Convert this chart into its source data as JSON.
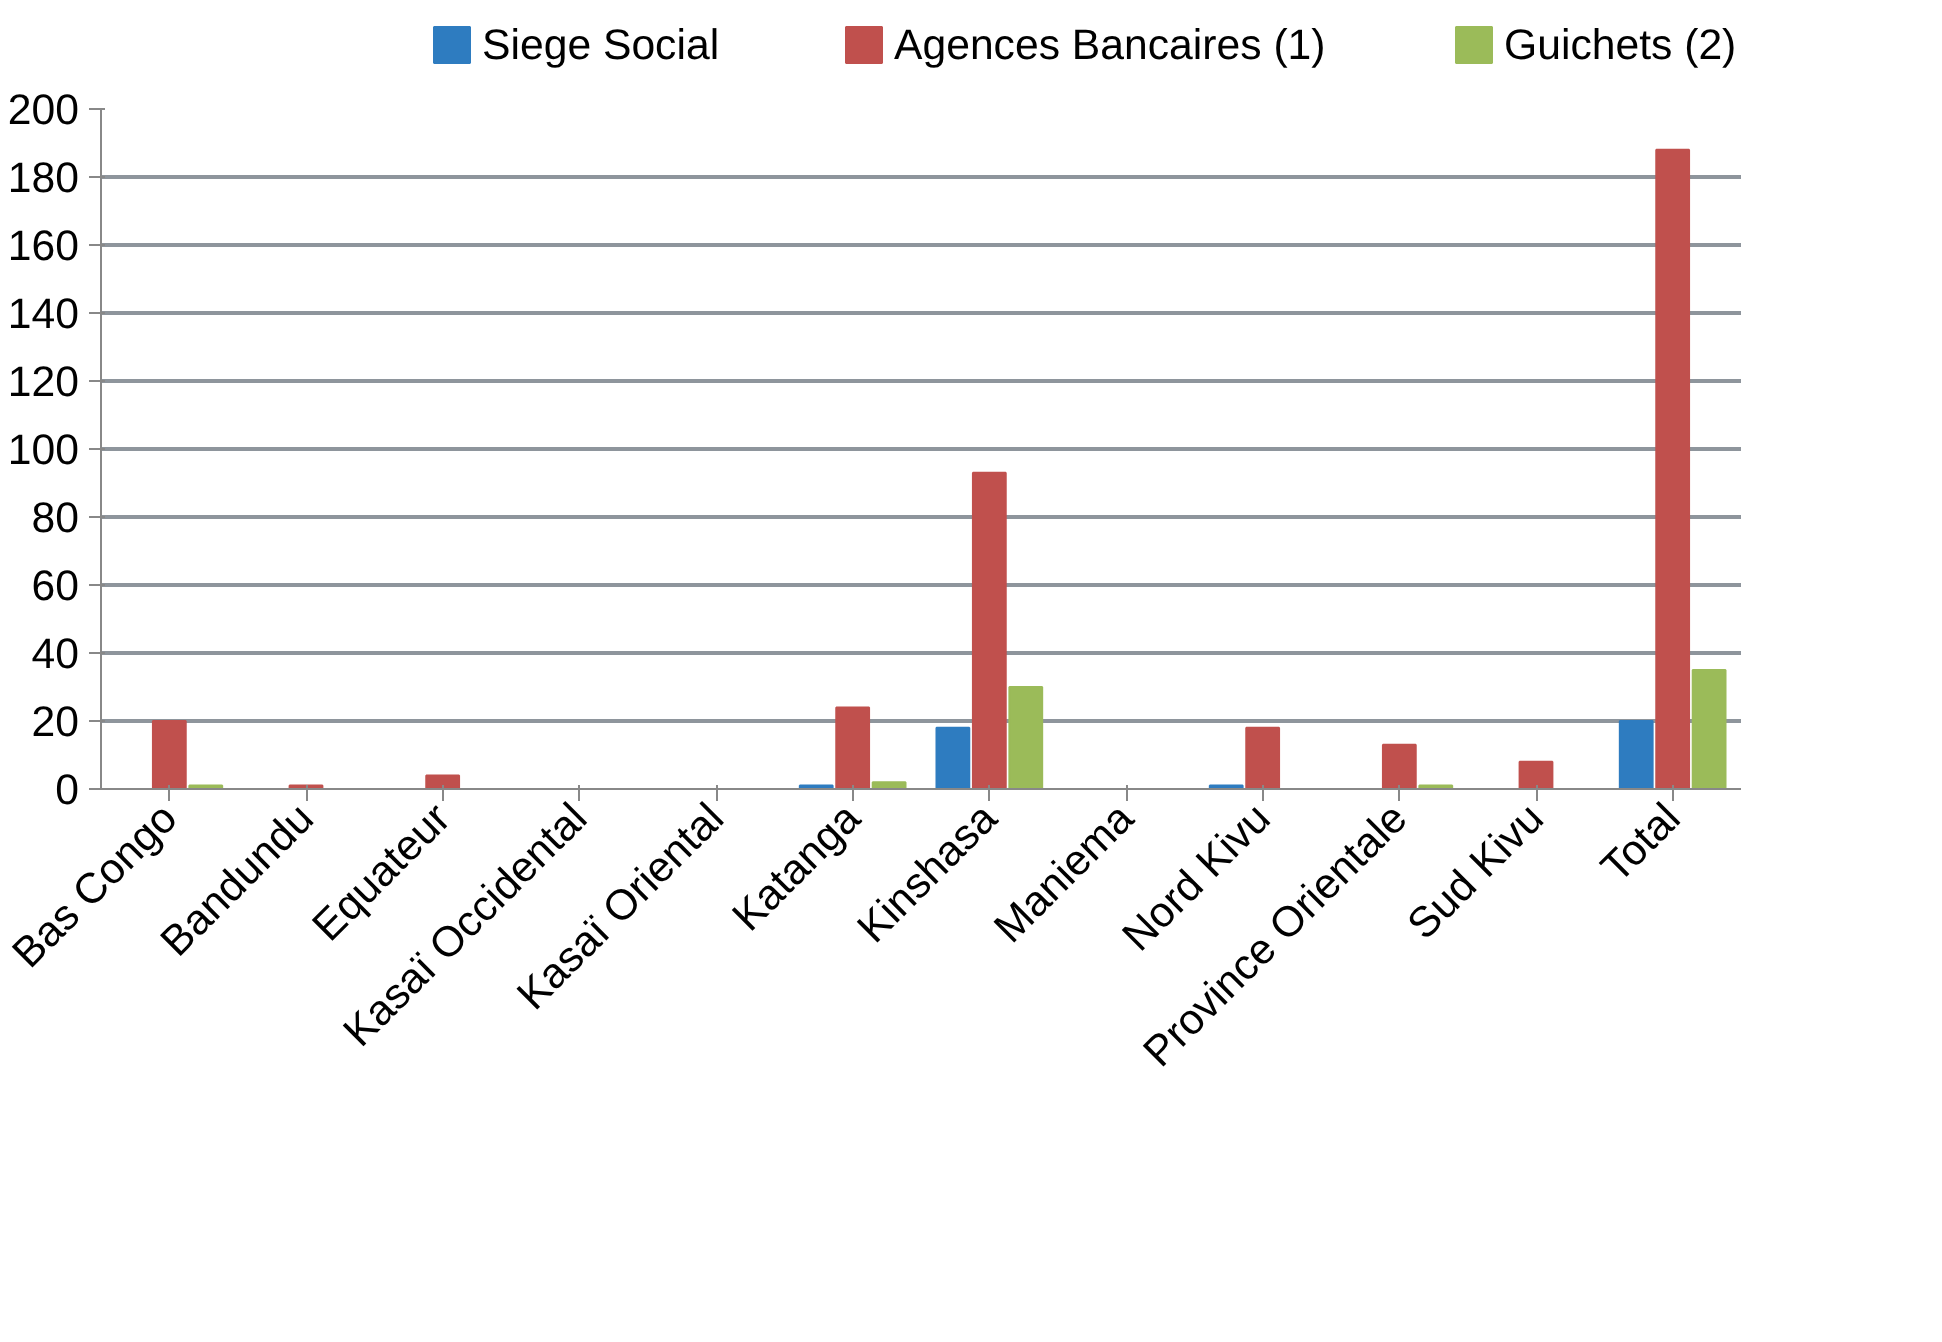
{
  "chart_data": {
    "type": "bar",
    "categories": [
      "Bas Congo",
      "Bandundu",
      "Equateur",
      "Kasaï Occidental",
      "Kasaï Oriental",
      "Katanga",
      "Kinshasa",
      "Maniema",
      "Nord Kivu",
      "Province Orientale",
      "Sud Kivu",
      "Total"
    ],
    "series": [
      {
        "name": "Siege Social",
        "color": "#2e7cc0",
        "values": [
          0,
          0,
          0,
          0,
          0,
          1,
          18,
          0,
          1,
          0,
          0,
          20
        ]
      },
      {
        "name": "Agences Bancaires (1)",
        "color": "#c0504d",
        "values": [
          20,
          1,
          4,
          0,
          0,
          24,
          93,
          0,
          18,
          13,
          8,
          188
        ]
      },
      {
        "name": "Guichets (2)",
        "color": "#9bbb59",
        "values": [
          1,
          0,
          0,
          0,
          0,
          2,
          30,
          0,
          0,
          1,
          0,
          35
        ]
      }
    ],
    "ylim": [
      0,
      200
    ],
    "yticks": [
      0,
      20,
      40,
      60,
      80,
      100,
      120,
      140,
      160,
      180,
      200
    ],
    "grid": "y",
    "legend": "top"
  }
}
